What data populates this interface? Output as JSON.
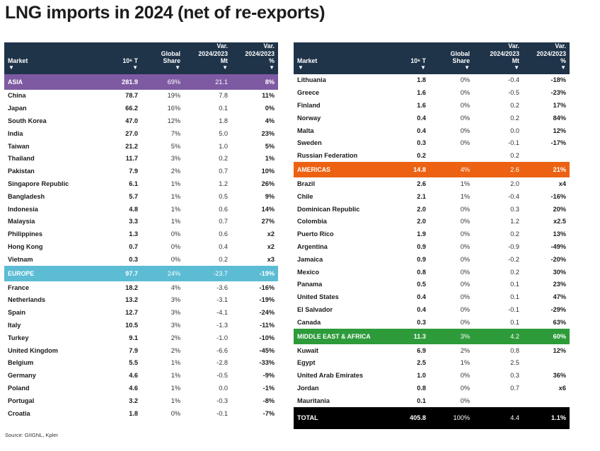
{
  "title": "LNG imports in 2024 (net of re-exports)",
  "source": "Source: GIIGNL, Kpler",
  "colors": {
    "header_bg": "#1f3349",
    "asia": "#7e5aa2",
    "europe": "#5bbcd4",
    "americas": "#ec6212",
    "middle_east_africa": "#2d9b3a",
    "total": "#000000"
  },
  "headers": {
    "market": "Market",
    "volume": "10⁶ T",
    "share_line1": "Global",
    "share_line2": "Share",
    "var_mt_line1": "Var.",
    "var_mt_line2": "2024/2023",
    "var_mt_line3": "Mt",
    "var_pct_line1": "Var.",
    "var_pct_line2": "2024/2023",
    "var_pct_line3": "%",
    "arrow": "▼"
  },
  "left": {
    "asia": {
      "name": "ASIA",
      "volume": "281.9",
      "share": "69%",
      "var_mt": "21.1",
      "var_pct": "8%"
    },
    "asia_rows": [
      {
        "market": "China",
        "volume": "78.7",
        "share": "19%",
        "var_mt": "7.8",
        "var_pct": "11%"
      },
      {
        "market": "Japan",
        "volume": "66.2",
        "share": "16%",
        "var_mt": "0.1",
        "var_pct": "0%"
      },
      {
        "market": "South Korea",
        "volume": "47.0",
        "share": "12%",
        "var_mt": "1.8",
        "var_pct": "4%"
      },
      {
        "market": "India",
        "volume": "27.0",
        "share": "7%",
        "var_mt": "5.0",
        "var_pct": "23%"
      },
      {
        "market": "Taiwan",
        "volume": "21.2",
        "share": "5%",
        "var_mt": "1.0",
        "var_pct": "5%"
      },
      {
        "market": "Thailand",
        "volume": "11.7",
        "share": "3%",
        "var_mt": "0.2",
        "var_pct": "1%"
      },
      {
        "market": "Pakistan",
        "volume": "7.9",
        "share": "2%",
        "var_mt": "0.7",
        "var_pct": "10%"
      },
      {
        "market": "Singapore Republic",
        "volume": "6.1",
        "share": "1%",
        "var_mt": "1.2",
        "var_pct": "26%"
      },
      {
        "market": "Bangladesh",
        "volume": "5.7",
        "share": "1%",
        "var_mt": "0.5",
        "var_pct": "9%"
      },
      {
        "market": "Indonesia",
        "volume": "4.8",
        "share": "1%",
        "var_mt": "0.6",
        "var_pct": "14%"
      },
      {
        "market": "Malaysia",
        "volume": "3.3",
        "share": "1%",
        "var_mt": "0.7",
        "var_pct": "27%"
      },
      {
        "market": "Philippines",
        "volume": "1.3",
        "share": "0%",
        "var_mt": "0.6",
        "var_pct": "x2"
      },
      {
        "market": "Hong Kong",
        "volume": "0.7",
        "share": "0%",
        "var_mt": "0.4",
        "var_pct": "x2"
      },
      {
        "market": "Vietnam",
        "volume": "0.3",
        "share": "0%",
        "var_mt": "0.2",
        "var_pct": "x3"
      }
    ],
    "europe": {
      "name": "EUROPE",
      "volume": "97.7",
      "share": "24%",
      "var_mt": "-23.7",
      "var_pct": "-19%"
    },
    "europe_rows": [
      {
        "market": "France",
        "volume": "18.2",
        "share": "4%",
        "var_mt": "-3.6",
        "var_pct": "-16%"
      },
      {
        "market": "Netherlands",
        "volume": "13.2",
        "share": "3%",
        "var_mt": "-3.1",
        "var_pct": "-19%"
      },
      {
        "market": "Spain",
        "volume": "12.7",
        "share": "3%",
        "var_mt": "-4.1",
        "var_pct": "-24%"
      },
      {
        "market": "Italy",
        "volume": "10.5",
        "share": "3%",
        "var_mt": "-1.3",
        "var_pct": "-11%"
      },
      {
        "market": "Turkey",
        "volume": "9.1",
        "share": "2%",
        "var_mt": "-1.0",
        "var_pct": "-10%"
      },
      {
        "market": "United Kingdom",
        "volume": "7.9",
        "share": "2%",
        "var_mt": "-6.6",
        "var_pct": "-45%"
      },
      {
        "market": "Belgium",
        "volume": "5.5",
        "share": "1%",
        "var_mt": "-2.8",
        "var_pct": "-33%"
      },
      {
        "market": "Germany",
        "volume": "4.6",
        "share": "1%",
        "var_mt": "-0.5",
        "var_pct": "-9%"
      },
      {
        "market": "Poland",
        "volume": "4.6",
        "share": "1%",
        "var_mt": "0.0",
        "var_pct": "-1%"
      },
      {
        "market": "Portugal",
        "volume": "3.2",
        "share": "1%",
        "var_mt": "-0.3",
        "var_pct": "-8%"
      },
      {
        "market": "Croatia",
        "volume": "1.8",
        "share": "0%",
        "var_mt": "-0.1",
        "var_pct": "-7%"
      }
    ]
  },
  "right": {
    "europe_cont_rows": [
      {
        "market": "Lithuania",
        "volume": "1.8",
        "share": "0%",
        "var_mt": "-0.4",
        "var_pct": "-18%"
      },
      {
        "market": "Greece",
        "volume": "1.6",
        "share": "0%",
        "var_mt": "-0.5",
        "var_pct": "-23%"
      },
      {
        "market": "Finland",
        "volume": "1.6",
        "share": "0%",
        "var_mt": "0.2",
        "var_pct": "17%"
      },
      {
        "market": "Norway",
        "volume": "0.4",
        "share": "0%",
        "var_mt": "0.2",
        "var_pct": "84%"
      },
      {
        "market": "Malta",
        "volume": "0.4",
        "share": "0%",
        "var_mt": "0.0",
        "var_pct": "12%"
      },
      {
        "market": "Sweden",
        "volume": "0.3",
        "share": "0%",
        "var_mt": "-0.1",
        "var_pct": "-17%"
      },
      {
        "market": "Russian Federation",
        "volume": "0.2",
        "share": "",
        "var_mt": "0.2",
        "var_pct": ""
      }
    ],
    "americas": {
      "name": "AMERICAS",
      "volume": "14.8",
      "share": "4%",
      "var_mt": "2.6",
      "var_pct": "21%"
    },
    "americas_rows": [
      {
        "market": "Brazil",
        "volume": "2.6",
        "share": "1%",
        "var_mt": "2.0",
        "var_pct": "x4"
      },
      {
        "market": "Chile",
        "volume": "2.1",
        "share": "1%",
        "var_mt": "-0.4",
        "var_pct": "-16%"
      },
      {
        "market": "Dominican Republic",
        "volume": "2.0",
        "share": "0%",
        "var_mt": "0.3",
        "var_pct": "20%"
      },
      {
        "market": "Colombia",
        "volume": "2.0",
        "share": "0%",
        "var_mt": "1.2",
        "var_pct": "x2.5"
      },
      {
        "market": "Puerto Rico",
        "volume": "1.9",
        "share": "0%",
        "var_mt": "0.2",
        "var_pct": "13%"
      },
      {
        "market": "Argentina",
        "volume": "0.9",
        "share": "0%",
        "var_mt": "-0.9",
        "var_pct": "-49%"
      },
      {
        "market": "Jamaica",
        "volume": "0.9",
        "share": "0%",
        "var_mt": "-0.2",
        "var_pct": "-20%"
      },
      {
        "market": "Mexico",
        "volume": "0.8",
        "share": "0%",
        "var_mt": "0.2",
        "var_pct": "30%"
      },
      {
        "market": "Panama",
        "volume": "0.5",
        "share": "0%",
        "var_mt": "0.1",
        "var_pct": "23%"
      },
      {
        "market": "United States",
        "volume": "0.4",
        "share": "0%",
        "var_mt": "0.1",
        "var_pct": "47%"
      },
      {
        "market": "El Salvador",
        "volume": "0.4",
        "share": "0%",
        "var_mt": "-0.1",
        "var_pct": "-29%"
      },
      {
        "market": "Canada",
        "volume": "0.3",
        "share": "0%",
        "var_mt": "0.1",
        "var_pct": "63%"
      }
    ],
    "mea": {
      "name": "MIDDLE EAST & AFRICA",
      "volume": "11.3",
      "share": "3%",
      "var_mt": "4.2",
      "var_pct": "60%"
    },
    "mea_rows": [
      {
        "market": "Kuwait",
        "volume": "6.9",
        "share": "2%",
        "var_mt": "0.8",
        "var_pct": "12%"
      },
      {
        "market": "Egypt",
        "volume": "2.5",
        "share": "1%",
        "var_mt": "2.5",
        "var_pct": ""
      },
      {
        "market": "United Arab Emirates",
        "volume": "1.0",
        "share": "0%",
        "var_mt": "0.3",
        "var_pct": "36%"
      },
      {
        "market": "Jordan",
        "volume": "0.8",
        "share": "0%",
        "var_mt": "0.7",
        "var_pct": "x6"
      },
      {
        "market": "Mauritania",
        "volume": "0.1",
        "share": "0%",
        "var_mt": "",
        "var_pct": ""
      }
    ],
    "total": {
      "name": "TOTAL",
      "volume": "405.8",
      "share": "100%",
      "var_mt": "4.4",
      "var_pct": "1.1%"
    }
  }
}
